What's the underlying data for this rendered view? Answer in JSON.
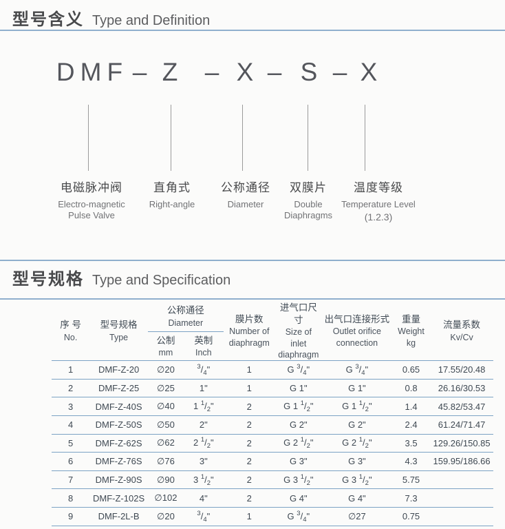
{
  "colors": {
    "divider": "#8fafcd",
    "line": "#7ba2c4",
    "text-dark": "#48494b",
    "text-gray": "#717275",
    "text-table": "#3e4852",
    "formula": "#54565c",
    "connector": "#9a9a9a",
    "bg": "#fbfbfa"
  },
  "section1": {
    "title_zh": "型号含义",
    "title_en": "Type and Definition",
    "formula": {
      "p0": "DMF",
      "d1": "–",
      "p1": "Z",
      "d2": "–",
      "p2": "X",
      "d3": "–",
      "p3": "S",
      "d4": "–",
      "p4": "X"
    },
    "labels": [
      {
        "zh": "电磁脉冲阀",
        "en1": "Electro-magnetic",
        "en2": "Pulse Valve"
      },
      {
        "zh": "直角式",
        "en1": "Right-angle",
        "en2": ""
      },
      {
        "zh": "公称通径",
        "en1": "Diameter",
        "en2": ""
      },
      {
        "zh": "双膜片",
        "en1": "Double",
        "en2": "Diaphragms"
      },
      {
        "zh": "温度等级",
        "en1": "Temperature Level",
        "en2": "(1.2.3)"
      }
    ]
  },
  "section2": {
    "title_zh": "型号规格",
    "title_en": "Type and Specification",
    "table": {
      "header": {
        "no": {
          "zh": "序 号",
          "en": "No."
        },
        "type": {
          "zh": "型号规格",
          "en": "Type"
        },
        "diameter": {
          "zh": "公称通径",
          "en": "Diameter"
        },
        "metric": {
          "zh": "公制",
          "en": "mm"
        },
        "imperial": {
          "zh": "英制",
          "en": "Inch"
        },
        "diaphragm": {
          "zh": "膜片数",
          "en1": "Number of",
          "en2": "diaphragm"
        },
        "inlet": {
          "zh": "进气口尺寸",
          "en1": "Size of inlet",
          "en2": "diaphragm"
        },
        "outlet": {
          "zh": "出气口连接形式",
          "en1": "Outlet orifice",
          "en2": "connection"
        },
        "weight": {
          "zh": "重量",
          "en1": "Weight",
          "en2": "kg"
        },
        "flow": {
          "zh": "流量系数",
          "en": "Kv/Cv"
        }
      },
      "row_keys": [
        "no",
        "type",
        "mm",
        "inch",
        "diaphragms",
        "inlet",
        "outlet",
        "weight",
        "kvcv"
      ],
      "fraction_columns": [
        "inch",
        "inlet",
        "outlet"
      ],
      "rows": [
        {
          "no": "1",
          "type": "DMF-Z-20",
          "mm": "∅20",
          "inch": "3/4\"",
          "diaphragms": "1",
          "inlet": "G 3/4\"",
          "outlet": "G 3/4\"",
          "weight": "0.65",
          "kvcv": "17.55/20.48"
        },
        {
          "no": "2",
          "type": "DMF-Z-25",
          "mm": "∅25",
          "inch": "1\"",
          "diaphragms": "1",
          "inlet": "G 1\"",
          "outlet": "G 1\"",
          "weight": "0.8",
          "kvcv": "26.16/30.53"
        },
        {
          "no": "3",
          "type": "DMF-Z-40S",
          "mm": "∅40",
          "inch": "1 1/2\"",
          "diaphragms": "2",
          "inlet": "G 1 1/2\"",
          "outlet": "G 1 1/2\"",
          "weight": "1.4",
          "kvcv": "45.82/53.47"
        },
        {
          "no": "4",
          "type": "DMF-Z-50S",
          "mm": "∅50",
          "inch": "2\"",
          "diaphragms": "2",
          "inlet": "G 2\"",
          "outlet": "G 2\"",
          "weight": "2.4",
          "kvcv": "61.24/71.47"
        },
        {
          "no": "5",
          "type": "DMF-Z-62S",
          "mm": "∅62",
          "inch": "2 1/2\"",
          "diaphragms": "2",
          "inlet": "G 2 1/2\"",
          "outlet": "G 2 1/2\"",
          "weight": "3.5",
          "kvcv": "129.26/150.85"
        },
        {
          "no": "6",
          "type": "DMF-Z-76S",
          "mm": "∅76",
          "inch": "3\"",
          "diaphragms": "2",
          "inlet": "G 3\"",
          "outlet": "G 3\"",
          "weight": "4.3",
          "kvcv": "159.95/186.66"
        },
        {
          "no": "7",
          "type": "DMF-Z-90S",
          "mm": "∅90",
          "inch": "3 1/2\"",
          "diaphragms": "2",
          "inlet": "G 3 1/2\"",
          "outlet": "G 3 1/2\"",
          "weight": "5.75",
          "kvcv": ""
        },
        {
          "no": "8",
          "type": "DMF-Z-102S",
          "mm": "∅102",
          "inch": "4\"",
          "diaphragms": "2",
          "inlet": "G 4\"",
          "outlet": "G 4\"",
          "weight": "7.3",
          "kvcv": ""
        },
        {
          "no": "9",
          "type": "DMF-2L-B",
          "mm": "∅20",
          "inch": "3/4\"",
          "diaphragms": "1",
          "inlet": "G 3/4\"",
          "outlet": "∅27",
          "weight": "0.75",
          "kvcv": ""
        }
      ]
    }
  }
}
